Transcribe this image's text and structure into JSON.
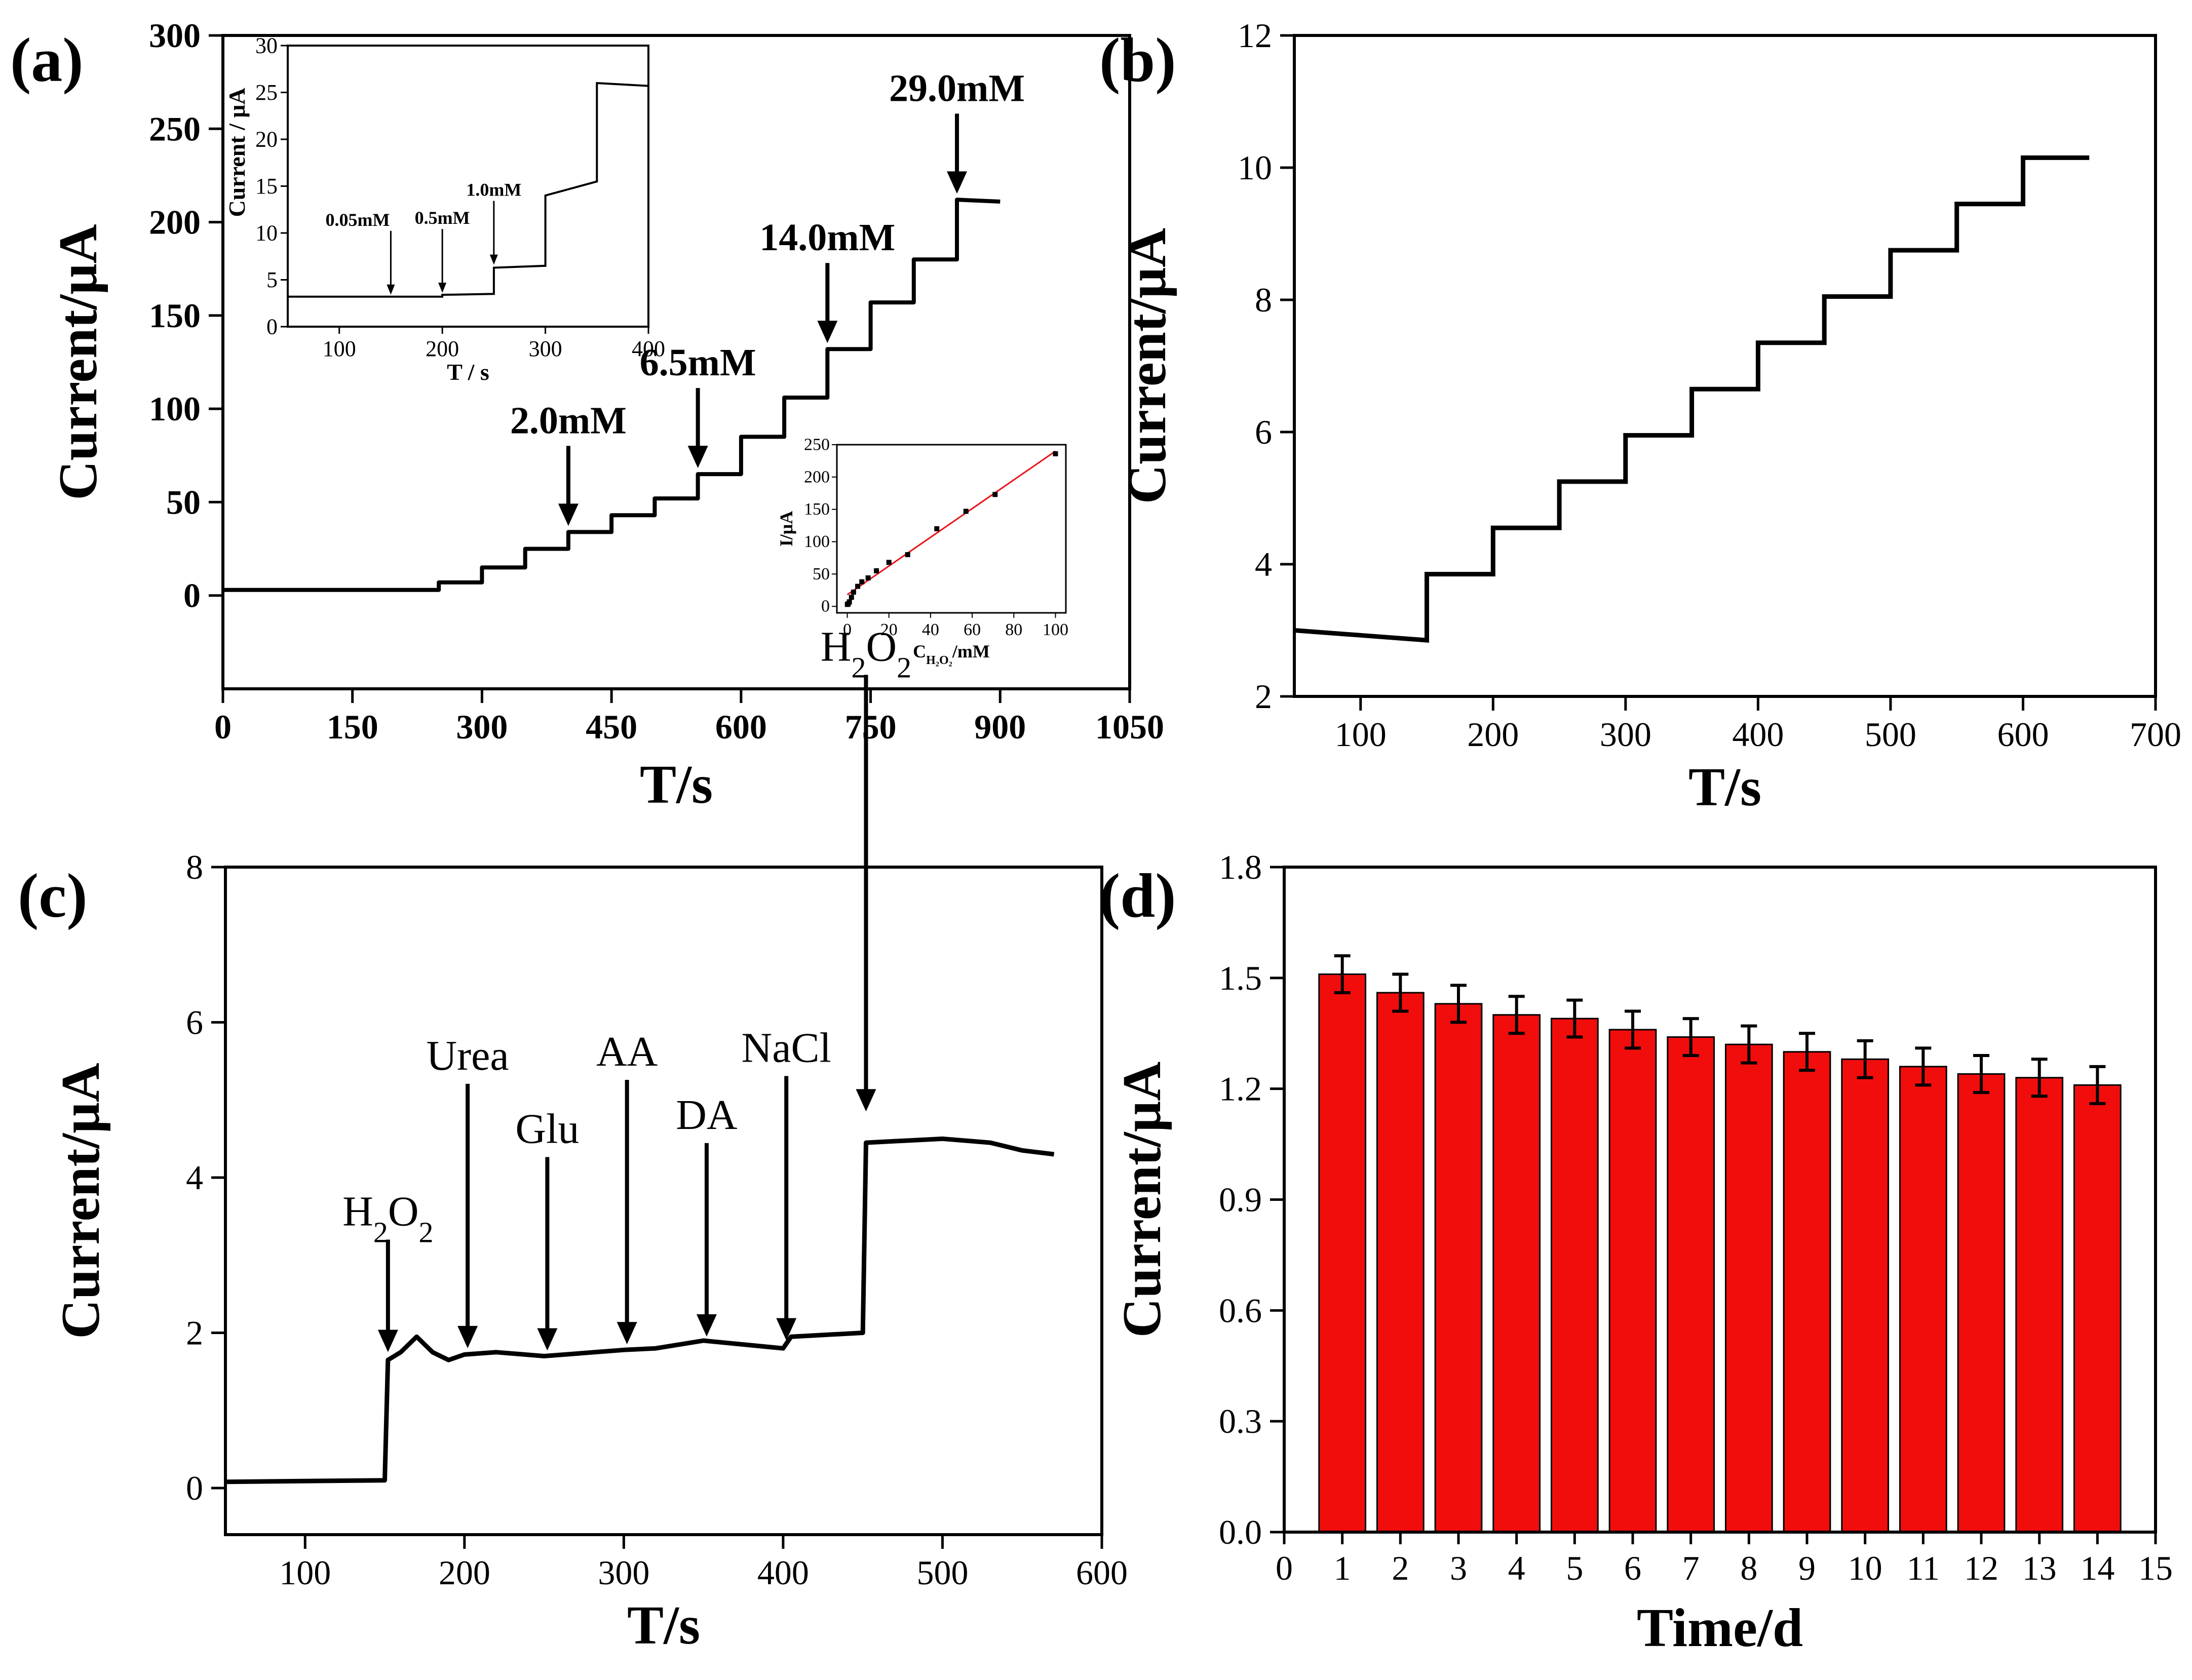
{
  "chart_data": [
    {
      "id": "a",
      "panel_label": "(a)",
      "type": "line",
      "xlabel": "T/s",
      "ylabel": "Current/μA",
      "xlim": [
        0,
        1050
      ],
      "ylim": [
        -50,
        300
      ],
      "xticks": [
        0,
        150,
        300,
        450,
        600,
        750,
        900,
        1050
      ],
      "yticks": [
        0,
        50,
        100,
        150,
        200,
        250,
        300
      ],
      "series": [
        {
          "name": "amperometric response",
          "steps": [
            [
              0,
              3
            ],
            [
              250,
              3
            ],
            [
              250,
              7
            ],
            [
              300,
              7
            ],
            [
              300,
              15
            ],
            [
              350,
              15
            ],
            [
              350,
              25
            ],
            [
              400,
              25
            ],
            [
              400,
              34
            ],
            [
              450,
              34
            ],
            [
              450,
              43
            ],
            [
              500,
              43
            ],
            [
              500,
              52
            ],
            [
              550,
              52
            ],
            [
              550,
              65
            ],
            [
              600,
              65
            ],
            [
              600,
              85
            ],
            [
              650,
              85
            ],
            [
              650,
              106
            ],
            [
              700,
              106
            ],
            [
              700,
              132
            ],
            [
              750,
              132
            ],
            [
              750,
              157
            ],
            [
              800,
              157
            ],
            [
              800,
              180
            ],
            [
              850,
              180
            ],
            [
              850,
              212
            ],
            [
              900,
              211
            ]
          ]
        }
      ],
      "annotations": [
        {
          "text": "2.0mM",
          "x": 400,
          "y": 34
        },
        {
          "text": "6.5mM",
          "x": 550,
          "y": 65
        },
        {
          "text": "14.0mM",
          "x": 700,
          "y": 132
        },
        {
          "text": "29.0mM",
          "x": 850,
          "y": 212
        }
      ],
      "inset_top": {
        "xlabel": "T / s",
        "ylabel": "Current / μA",
        "xlim": [
          50,
          400
        ],
        "ylim": [
          0,
          30
        ],
        "xticks": [
          100,
          200,
          300,
          400
        ],
        "yticks": [
          0,
          5,
          10,
          15,
          20,
          25,
          30
        ],
        "steps": [
          [
            50,
            3.2
          ],
          [
            150,
            3.2
          ],
          [
            200,
            3.2
          ],
          [
            200,
            3.4
          ],
          [
            250,
            3.5
          ],
          [
            250,
            6.3
          ],
          [
            300,
            6.5
          ],
          [
            300,
            14
          ],
          [
            350,
            15.5
          ],
          [
            350,
            26
          ],
          [
            400,
            25.7
          ]
        ],
        "annotations": [
          {
            "text": "0.05mM",
            "x": 150
          },
          {
            "text": "0.5mM",
            "x": 200
          },
          {
            "text": "1.0mM",
            "x": 250
          }
        ]
      },
      "inset_cal": {
        "xlabel": "C_H2O2/mM",
        "ylabel": "I/μA",
        "xlim": [
          -5,
          105
        ],
        "ylim": [
          -10,
          250
        ],
        "xticks": [
          0,
          20,
          40,
          60,
          80,
          100
        ],
        "yticks": [
          0,
          50,
          100,
          150,
          200,
          250
        ],
        "points": [
          [
            0.05,
            3
          ],
          [
            0.5,
            4
          ],
          [
            1,
            7
          ],
          [
            2,
            14
          ],
          [
            3,
            22
          ],
          [
            5,
            31
          ],
          [
            7,
            38
          ],
          [
            10,
            44
          ],
          [
            14,
            55
          ],
          [
            20,
            68
          ],
          [
            29,
            80
          ],
          [
            43,
            120
          ],
          [
            57,
            147
          ],
          [
            71,
            173
          ],
          [
            100,
            236
          ]
        ],
        "fit": [
          [
            0,
            18
          ],
          [
            100,
            240
          ]
        ],
        "fit_color": "#e8141a"
      }
    },
    {
      "id": "b",
      "panel_label": "(b)",
      "type": "line",
      "xlabel": "T/s",
      "ylabel": "Current/μA",
      "xlim": [
        50,
        700
      ],
      "ylim": [
        2,
        12
      ],
      "xticks": [
        100,
        200,
        300,
        400,
        500,
        600,
        700
      ],
      "yticks": [
        2,
        4,
        6,
        8,
        10,
        12
      ],
      "series": [
        {
          "name": "step response",
          "steps": [
            [
              50,
              3.0
            ],
            [
              150,
              2.85
            ],
            [
              150,
              3.85
            ],
            [
              200,
              3.85
            ],
            [
              200,
              4.55
            ],
            [
              250,
              4.55
            ],
            [
              250,
              5.25
            ],
            [
              300,
              5.25
            ],
            [
              300,
              5.95
            ],
            [
              350,
              5.95
            ],
            [
              350,
              6.65
            ],
            [
              400,
              6.65
            ],
            [
              400,
              7.35
            ],
            [
              450,
              7.35
            ],
            [
              450,
              8.05
            ],
            [
              500,
              8.05
            ],
            [
              500,
              8.75
            ],
            [
              550,
              8.75
            ],
            [
              550,
              9.45
            ],
            [
              600,
              9.45
            ],
            [
              600,
              10.15
            ],
            [
              650,
              10.15
            ]
          ]
        }
      ]
    },
    {
      "id": "c",
      "panel_label": "(c)",
      "type": "line",
      "xlabel": "T/s",
      "ylabel": "Current/μA",
      "xlim": [
        50,
        600
      ],
      "ylim": [
        -0.6,
        8
      ],
      "xticks": [
        100,
        200,
        300,
        400,
        500,
        600
      ],
      "yticks": [
        0,
        2,
        4,
        6,
        8
      ],
      "series": [
        {
          "name": "interference test",
          "points": [
            [
              50,
              0.08
            ],
            [
              150,
              0.1
            ],
            [
              152,
              1.65
            ],
            [
              160,
              1.75
            ],
            [
              170,
              1.95
            ],
            [
              180,
              1.75
            ],
            [
              190,
              1.65
            ],
            [
              200,
              1.72
            ],
            [
              220,
              1.75
            ],
            [
              250,
              1.7
            ],
            [
              300,
              1.78
            ],
            [
              320,
              1.8
            ],
            [
              350,
              1.9
            ],
            [
              400,
              1.8
            ],
            [
              405,
              1.95
            ],
            [
              450,
              2.0
            ],
            [
              452,
              4.45
            ],
            [
              500,
              4.5
            ],
            [
              530,
              4.45
            ],
            [
              550,
              4.35
            ],
            [
              570,
              4.3
            ]
          ]
        }
      ],
      "annotations": [
        {
          "label": "H2O2",
          "x": 152,
          "y": 1.7
        },
        {
          "label": "Urea",
          "x": 202,
          "y": 1.75
        },
        {
          "label": "Glu",
          "x": 252,
          "y": 1.72
        },
        {
          "label": "AA",
          "x": 302,
          "y": 1.8
        },
        {
          "label": "DA",
          "x": 352,
          "y": 1.9
        },
        {
          "label": "NaCl",
          "x": 402,
          "y": 1.85
        },
        {
          "label": "H2O2",
          "x": 452,
          "y": 4.8
        }
      ]
    },
    {
      "id": "d",
      "panel_label": "(d)",
      "type": "bar",
      "xlabel": "Time/d",
      "ylabel": "Current/μA",
      "xlim": [
        0,
        15
      ],
      "ylim": [
        0,
        1.8
      ],
      "xticks": [
        0,
        1,
        2,
        3,
        4,
        5,
        6,
        7,
        8,
        9,
        10,
        11,
        12,
        13,
        14,
        15
      ],
      "yticks": [
        "0.0",
        "0.3",
        "0.6",
        "0.9",
        "1.2",
        "1.5",
        "1.8"
      ],
      "categories": [
        1,
        2,
        3,
        4,
        5,
        6,
        7,
        8,
        9,
        10,
        11,
        12,
        13,
        14
      ],
      "values": [
        1.51,
        1.46,
        1.43,
        1.4,
        1.39,
        1.36,
        1.34,
        1.32,
        1.3,
        1.28,
        1.26,
        1.24,
        1.23,
        1.21
      ],
      "errors": [
        0.05,
        0.05,
        0.05,
        0.05,
        0.05,
        0.05,
        0.05,
        0.05,
        0.05,
        0.05,
        0.05,
        0.05,
        0.05,
        0.05
      ],
      "bar_color": "#f20d0d"
    }
  ]
}
